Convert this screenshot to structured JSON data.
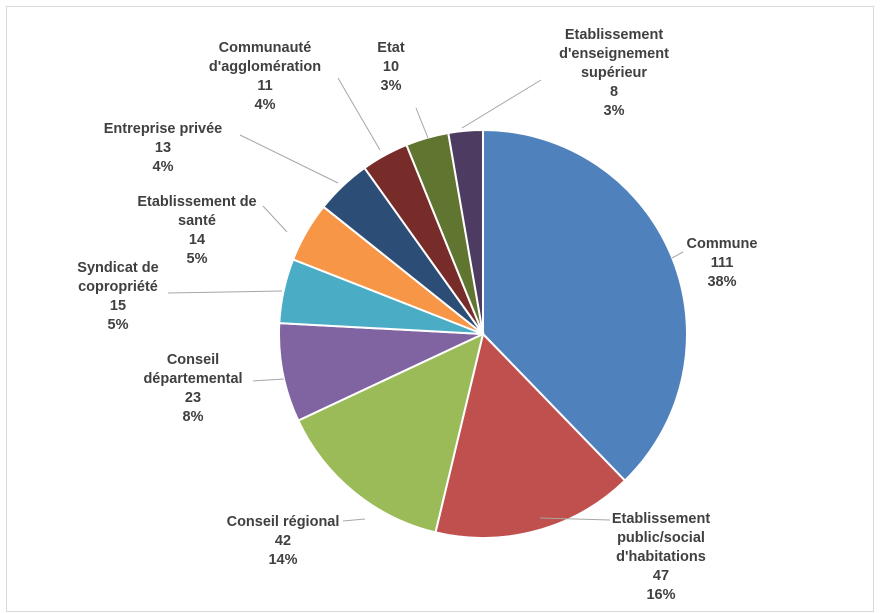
{
  "chart_data": {
    "type": "pie",
    "title": "",
    "legend": "none",
    "slices": [
      {
        "name": "Commune",
        "value": 111,
        "percent": "38%",
        "color": "#4f81bd"
      },
      {
        "name": "Etablissement public/social d'habitations",
        "value": 47,
        "percent": "16%",
        "color": "#c0504d"
      },
      {
        "name": "Conseil régional",
        "value": 42,
        "percent": "14%",
        "color": "#9bbb59"
      },
      {
        "name": "Conseil départemental",
        "value": 23,
        "percent": "8%",
        "color": "#8064a2"
      },
      {
        "name": "Syndicat de copropriété",
        "value": 15,
        "percent": "5%",
        "color": "#4bacc6"
      },
      {
        "name": "Etablissement de santé",
        "value": 14,
        "percent": "5%",
        "color": "#f79646"
      },
      {
        "name": "Entreprise privée",
        "value": 13,
        "percent": "4%",
        "color": "#2c4d75"
      },
      {
        "name": "Communauté d'agglomération",
        "value": 11,
        "percent": "4%",
        "color": "#772c2a"
      },
      {
        "name": "Etat",
        "value": 10,
        "percent": "3%",
        "color": "#5f7530"
      },
      {
        "name": "Etablissement d'enseignement supérieur",
        "value": 8,
        "percent": "3%",
        "color": "#4d3b62"
      }
    ]
  },
  "labels": [
    {
      "lines": [
        "Commune",
        "111",
        "38%"
      ]
    },
    {
      "lines": [
        "Etablissement",
        "public/social",
        "d'habitations",
        "47",
        "16%"
      ]
    },
    {
      "lines": [
        "Conseil régional",
        "42",
        "14%"
      ]
    },
    {
      "lines": [
        "Conseil",
        "départemental",
        "23",
        "8%"
      ]
    },
    {
      "lines": [
        "Syndicat de",
        "copropriété",
        "15",
        "5%"
      ]
    },
    {
      "lines": [
        "Etablissement de",
        "santé",
        "14",
        "5%"
      ]
    },
    {
      "lines": [
        "Entreprise privée",
        "13",
        "4%"
      ]
    },
    {
      "lines": [
        "Communauté",
        "d'agglomération",
        "11",
        "4%"
      ]
    },
    {
      "lines": [
        "Etat",
        "10",
        "3%"
      ]
    },
    {
      "lines": [
        "Etablissement",
        "d'enseignement",
        "supérieur",
        "8",
        "3%"
      ]
    }
  ]
}
